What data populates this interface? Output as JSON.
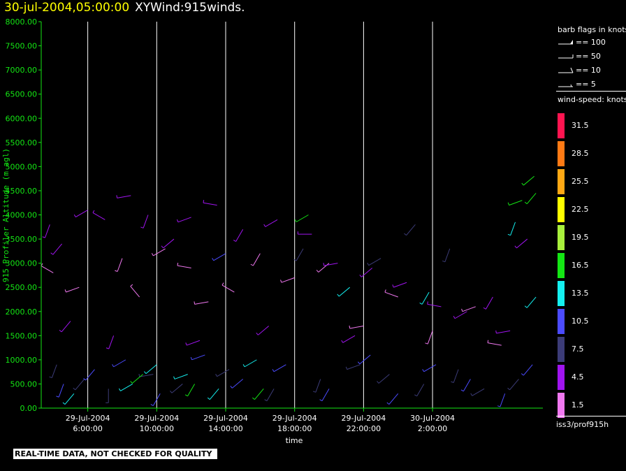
{
  "header": {
    "timestamp": "30-jul-2004,05:00:00",
    "name": "XYWind:915winds."
  },
  "legend": {
    "barb_title": "barb flags in knots",
    "barbs": [
      {
        "label": "== 100",
        "kind": "pennant"
      },
      {
        "label": "== 50",
        "kind": "half-pennant"
      },
      {
        "label": "== 10",
        "kind": "full"
      },
      {
        "label": "== 5",
        "kind": "half"
      }
    ],
    "speed_title": "wind-speed: knots",
    "color_scale": [
      {
        "label": "31.5",
        "color": "#ff1450"
      },
      {
        "label": "28.5",
        "color": "#ff7a14"
      },
      {
        "label": "25.5",
        "color": "#ffa814"
      },
      {
        "label": "22.5",
        "color": "#ffff00"
      },
      {
        "label": "19.5",
        "color": "#a8f03c"
      },
      {
        "label": "16.5",
        "color": "#14e614"
      },
      {
        "label": "13.5",
        "color": "#14f0f0"
      },
      {
        "label": "10.5",
        "color": "#4b4bff"
      },
      {
        "label": "7.5",
        "color": "#3c3c78"
      },
      {
        "label": "4.5",
        "color": "#a014f0"
      },
      {
        "label": "1.5",
        "color": "#f078f0"
      }
    ]
  },
  "source": "iss3/prof915h",
  "warning": "REAL-TIME DATA, NOT CHECKED FOR QUALITY",
  "colors": {
    "axis": "#14e614",
    "grid": "#ffffff"
  },
  "chart_data": {
    "type": "scatter",
    "title": "",
    "xlabel": "time",
    "ylabel": "915 Profiler Altitude (m agl)",
    "ylim": [
      0,
      8000
    ],
    "yticks": [
      "8000.00",
      "7500.00",
      "7000.00",
      "6500.00",
      "6000.00",
      "5500.00",
      "5000.00",
      "4500.00",
      "4000.00",
      "3500.00",
      "3000.00",
      "2500.00",
      "2000.00",
      "1500.00",
      "1000.00",
      "500.00",
      "0.00"
    ],
    "xlim_hours": [
      3.3,
      32.4
    ],
    "xticks": [
      {
        "date": "29-Jul-2004",
        "time": "6:00:00",
        "hour": 6
      },
      {
        "date": "29-Jul-2004",
        "time": "10:00:00",
        "hour": 10
      },
      {
        "date": "29-Jul-2004",
        "time": "14:00:00",
        "hour": 14
      },
      {
        "date": "29-Jul-2004",
        "time": "18:00:00",
        "hour": 18
      },
      {
        "date": "29-Jul-2004",
        "time": "22:00:00",
        "hour": 22
      },
      {
        "date": "30-Jul-2004",
        "time": "2:00:00",
        "hour": 26
      }
    ],
    "grid": "vertical",
    "legend_position": "right",
    "series": [
      {
        "color_bin": "1.5",
        "points": [
          [
            4.0,
            2800,
            300
          ],
          [
            5.5,
            2500,
            250
          ],
          [
            8.0,
            3100,
            200
          ],
          [
            9.0,
            2300,
            320
          ],
          [
            10.5,
            3300,
            240
          ],
          [
            12.0,
            2900,
            280
          ],
          [
            13.0,
            2200,
            260
          ],
          [
            14.5,
            2400,
            300
          ],
          [
            16.0,
            3200,
            210
          ],
          [
            18.0,
            2700,
            250
          ],
          [
            20.0,
            3000,
            230
          ],
          [
            22.0,
            1700,
            260
          ],
          [
            24.0,
            2300,
            290
          ],
          [
            26.0,
            1600,
            200
          ],
          [
            28.5,
            2100,
            250
          ],
          [
            30.0,
            1300,
            280
          ]
        ]
      },
      {
        "color_bin": "4.5",
        "points": [
          [
            3.8,
            3800,
            200
          ],
          [
            4.5,
            3400,
            220
          ],
          [
            6.0,
            4100,
            240
          ],
          [
            7.0,
            3900,
            300
          ],
          [
            8.5,
            4400,
            260
          ],
          [
            9.5,
            4000,
            200
          ],
          [
            11.0,
            3500,
            230
          ],
          [
            12.0,
            3950,
            250
          ],
          [
            13.5,
            4200,
            280
          ],
          [
            15.0,
            3700,
            210
          ],
          [
            17.0,
            3900,
            240
          ],
          [
            19.0,
            3600,
            270
          ],
          [
            20.5,
            3000,
            260
          ],
          [
            22.5,
            2900,
            230
          ],
          [
            24.5,
            2600,
            250
          ],
          [
            26.5,
            2100,
            280
          ],
          [
            28.0,
            2000,
            240
          ],
          [
            29.5,
            2300,
            210
          ],
          [
            30.5,
            1600,
            260
          ],
          [
            31.5,
            3500,
            230
          ],
          [
            5.0,
            1800,
            220
          ],
          [
            7.5,
            1500,
            200
          ],
          [
            12.5,
            1400,
            250
          ],
          [
            16.5,
            1700,
            230
          ],
          [
            21.5,
            1500,
            240
          ]
        ]
      },
      {
        "color_bin": "7.5",
        "points": [
          [
            4.2,
            900,
            200
          ],
          [
            5.8,
            600,
            220
          ],
          [
            7.2,
            400,
            180
          ],
          [
            9.8,
            700,
            260
          ],
          [
            11.5,
            500,
            230
          ],
          [
            14.2,
            800,
            240
          ],
          [
            16.8,
            400,
            210
          ],
          [
            19.5,
            600,
            200
          ],
          [
            21.8,
            900,
            250
          ],
          [
            23.5,
            700,
            230
          ],
          [
            25.5,
            500,
            210
          ],
          [
            27.5,
            800,
            200
          ],
          [
            29.0,
            400,
            240
          ],
          [
            31.0,
            600,
            220
          ],
          [
            18.5,
            3300,
            210
          ],
          [
            23.0,
            3100,
            240
          ],
          [
            25.0,
            3800,
            220
          ],
          [
            27.0,
            3300,
            200
          ]
        ]
      },
      {
        "color_bin": "10.5",
        "points": [
          [
            4.6,
            500,
            200
          ],
          [
            6.4,
            800,
            220
          ],
          [
            8.2,
            1000,
            240
          ],
          [
            10.2,
            300,
            210
          ],
          [
            12.8,
            1100,
            250
          ],
          [
            15.0,
            600,
            230
          ],
          [
            17.5,
            900,
            240
          ],
          [
            20.0,
            400,
            210
          ],
          [
            22.4,
            1100,
            230
          ],
          [
            24.0,
            300,
            220
          ],
          [
            26.2,
            900,
            240
          ],
          [
            28.2,
            600,
            210
          ],
          [
            30.2,
            300,
            200
          ],
          [
            31.8,
            900,
            220
          ],
          [
            14.0,
            3200,
            240
          ]
        ]
      },
      {
        "color_bin": "13.5",
        "points": [
          [
            5.2,
            300,
            220
          ],
          [
            8.6,
            500,
            240
          ],
          [
            10.0,
            900,
            230
          ],
          [
            11.8,
            700,
            250
          ],
          [
            13.6,
            400,
            220
          ],
          [
            15.8,
            1000,
            240
          ],
          [
            21.2,
            2500,
            230
          ],
          [
            25.8,
            2400,
            210
          ],
          [
            30.8,
            3850,
            200
          ],
          [
            32.0,
            2300,
            220
          ]
        ]
      },
      {
        "color_bin": "16.5",
        "points": [
          [
            9.2,
            700,
            230
          ],
          [
            12.2,
            500,
            210
          ],
          [
            16.2,
            400,
            220
          ],
          [
            18.8,
            4000,
            240
          ],
          [
            31.2,
            4300,
            250
          ],
          [
            31.9,
            4800,
            230
          ],
          [
            32.0,
            4450,
            220
          ]
        ]
      }
    ]
  }
}
